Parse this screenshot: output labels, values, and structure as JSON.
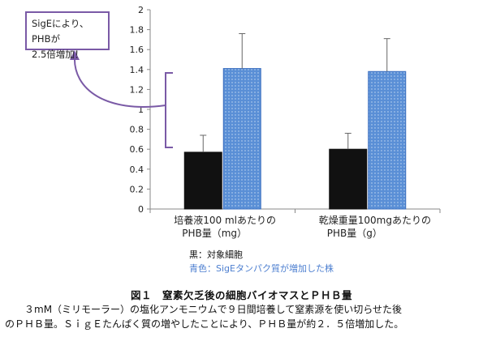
{
  "chart_data": {
    "type": "bar",
    "categories": [
      [
        "培養液100 mlあたりの",
        "PHB量（mg）"
      ],
      [
        "乾燥重量100mgあたりの",
        "PHB量（g）"
      ]
    ],
    "series": [
      {
        "name": "黒：対象細胞",
        "color": "#111111",
        "values": [
          0.57,
          0.6
        ],
        "errors": [
          0.17,
          0.16
        ]
      },
      {
        "name": "青色：SigEタンパク質が増加した株",
        "color": "#5a8fd6",
        "values": [
          1.41,
          1.38
        ],
        "errors": [
          0.35,
          0.33
        ]
      }
    ],
    "ylim": [
      0,
      2
    ],
    "yticks": [
      "0",
      "0.2",
      "0.4",
      "0.6",
      "0.8",
      "1",
      "1.2",
      "1.4",
      "1.6",
      "1.8",
      "2"
    ],
    "grid": false
  },
  "callout": {
    "line1": "SigEにより、PHBが",
    "line2": "2.5倍増加！"
  },
  "legend": {
    "black_label": "黒：対象細胞",
    "blue_label": "青色：SigEタンパク質が増加した株"
  },
  "caption": {
    "title": "図１　窒素欠乏後の細胞バイオマスとＰＨＢ量",
    "body_line1": "３mM（ミリモーラー）の塩化アンモニウムで９日間培養して窒素源を使い切らせた後",
    "body_line2": "のＰＨＢ量。ＳｉｇＥたんぱく質の増やしたことにより、ＰＨＢ量が約２．５倍増加した。"
  },
  "colors": {
    "accent_purple": "#7a5aa6",
    "bar_blue": "#5a8fd6",
    "bar_black": "#111111"
  }
}
